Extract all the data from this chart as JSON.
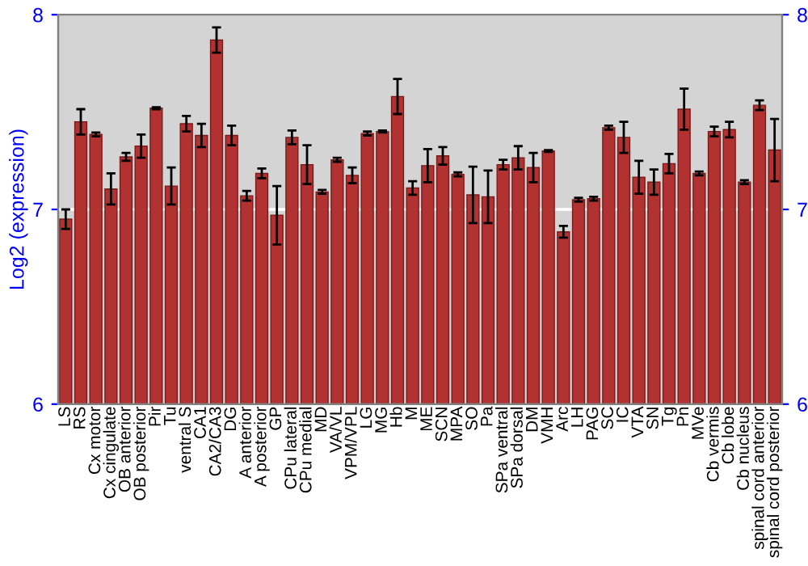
{
  "chart_data": {
    "type": "bar",
    "ylabel": "Log2 (expression)",
    "color": "#b23232",
    "categories": [
      "LS",
      "RS",
      "Cx motor",
      "Cx cingulate",
      "OB anterior",
      "OB posterior",
      "Pir",
      "Tu",
      "ventral S",
      "CA1",
      "CA2/CA3",
      "DG",
      "A anterior",
      "A posterior",
      "GP",
      "CPu lateral",
      "CPu medial",
      "MD",
      "VA/VL",
      "VPM/VPL",
      "LG",
      "MG",
      "Hb",
      "M",
      "ME",
      "SCN",
      "MPA",
      "SO",
      "Pa",
      "SPa ventral",
      "SPa dorsal",
      "DM",
      "VMH",
      "Arc",
      "LH",
      "PAG",
      "SC",
      "IC",
      "VTA",
      "SN",
      "Tg",
      "Pn",
      "MVe",
      "Cb vermis",
      "Cb lobe",
      "Cb nucleus",
      "spinal cord anterior",
      "spinal cord posterior"
    ],
    "values": [
      6.95,
      7.45,
      7.385,
      7.105,
      7.27,
      7.325,
      7.52,
      7.12,
      7.44,
      7.38,
      7.87,
      7.38,
      7.07,
      7.185,
      6.97,
      7.37,
      7.23,
      7.09,
      7.255,
      7.175,
      7.39,
      7.4,
      7.58,
      7.11,
      7.225,
      7.275,
      7.18,
      7.075,
      7.065,
      7.23,
      7.265,
      7.215,
      7.3,
      6.885,
      7.05,
      7.055,
      7.42,
      7.37,
      7.165,
      7.14,
      7.235,
      7.515,
      7.185,
      7.4,
      7.41,
      7.14,
      7.535,
      7.305
    ],
    "errors": [
      0.05,
      0.065,
      0.01,
      0.08,
      0.02,
      0.06,
      0.005,
      0.095,
      0.04,
      0.06,
      0.065,
      0.05,
      0.025,
      0.025,
      0.15,
      0.035,
      0.1,
      0.01,
      0.01,
      0.04,
      0.01,
      0.005,
      0.09,
      0.035,
      0.085,
      0.045,
      0.01,
      0.145,
      0.135,
      0.025,
      0.06,
      0.075,
      0.005,
      0.03,
      0.01,
      0.01,
      0.01,
      0.08,
      0.085,
      0.065,
      0.05,
      0.105,
      0.01,
      0.025,
      0.04,
      0.01,
      0.025,
      0.16
    ],
    "ylim": [
      6,
      8
    ],
    "yticks": [
      6,
      7,
      8
    ],
    "y2lim": [
      6,
      8
    ],
    "y2ticks": [
      6,
      7,
      8
    ],
    "grid": "y"
  }
}
